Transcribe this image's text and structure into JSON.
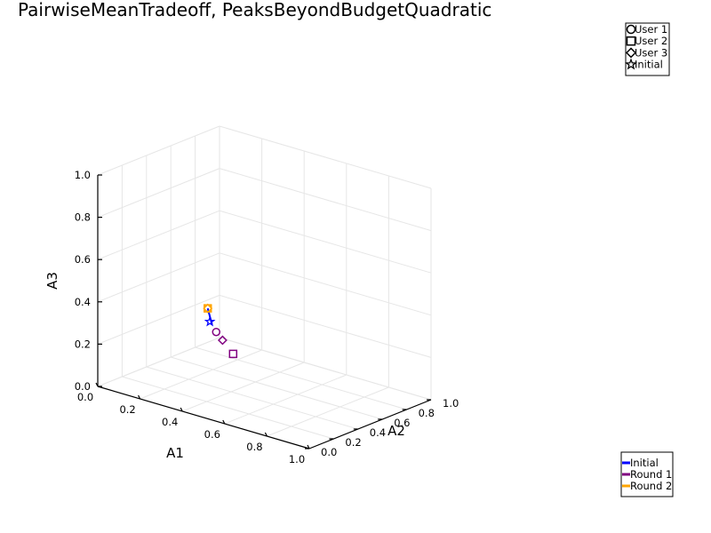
{
  "chart_data": {
    "type": "scatter3d",
    "title": "PairwiseMeanTradeoff, PeaksBeyondBudgetQuadratic",
    "xlabel": "A1",
    "ylabel": "A2",
    "zlabel": "A3",
    "xlim": [
      0,
      1
    ],
    "ylim": [
      0,
      1
    ],
    "zlim": [
      0,
      1
    ],
    "xticks": [
      "0.0",
      "0.2",
      "0.4",
      "0.6",
      "0.8",
      "1.0"
    ],
    "yticks": [
      "0.0",
      "0.2",
      "0.4",
      "0.6",
      "0.8",
      "1.0"
    ],
    "zticks": [
      "0.0",
      "0.2",
      "0.4",
      "0.6",
      "0.8",
      "1.0"
    ],
    "grid": true,
    "marker_legend": {
      "placement": "top-right",
      "entries": [
        {
          "label": "User 1",
          "marker": "circle"
        },
        {
          "label": "User 2",
          "marker": "square"
        },
        {
          "label": "User 3",
          "marker": "diamond"
        },
        {
          "label": "Initial",
          "marker": "star"
        }
      ]
    },
    "line_legend": {
      "placement": "bottom-right",
      "entries": [
        {
          "label": "Initial",
          "color": "#0000ff"
        },
        {
          "label": "Round 1",
          "color": "#800080"
        },
        {
          "label": "Round 2",
          "color": "#ffa500"
        }
      ]
    },
    "series": [
      {
        "name": "Initial",
        "color": "#0000ff",
        "points": [
          {
            "marker": "star",
            "x": 0.34,
            "y": 0.33,
            "z": 0.33
          }
        ],
        "path": [
          {
            "x": 0.33,
            "y": 0.33,
            "z": 0.39
          },
          {
            "x": 0.35,
            "y": 0.33,
            "z": 0.32
          }
        ]
      },
      {
        "name": "Round 1",
        "color": "#800080",
        "points": [
          {
            "marker": "circle",
            "x": 0.37,
            "y": 0.33,
            "z": 0.29
          },
          {
            "marker": "square",
            "x": 0.45,
            "y": 0.33,
            "z": 0.21
          },
          {
            "marker": "diamond",
            "x": 0.4,
            "y": 0.33,
            "z": 0.26
          }
        ]
      },
      {
        "name": "Round 2",
        "color": "#ffa500",
        "points": [
          {
            "marker": "circle",
            "x": 0.33,
            "y": 0.33,
            "z": 0.39
          },
          {
            "marker": "square",
            "x": 0.33,
            "y": 0.33,
            "z": 0.39
          },
          {
            "marker": "diamond",
            "x": 0.33,
            "y": 0.33,
            "z": 0.39
          }
        ]
      }
    ]
  }
}
